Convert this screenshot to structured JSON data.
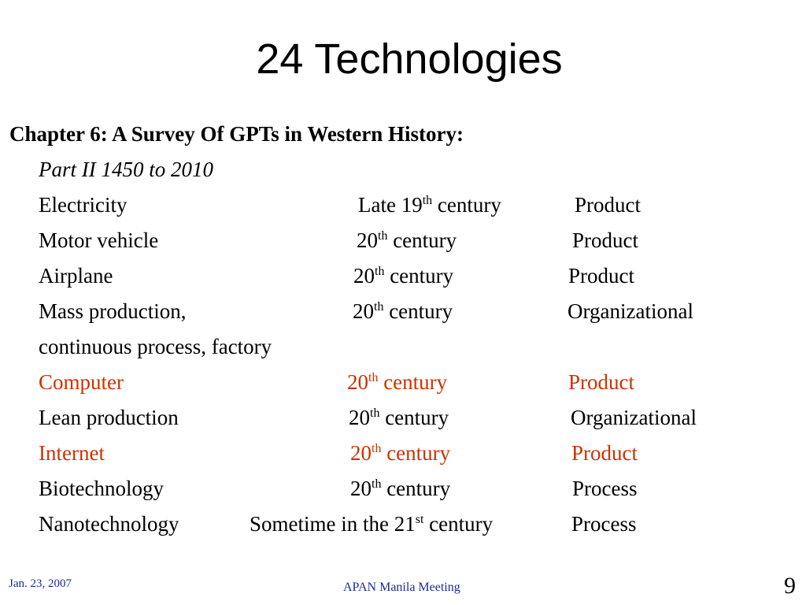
{
  "title": "24 Technologies",
  "heading": "Chapter 6: A Survey Of GPTs in Western History:",
  "subheading": "Part II 1450 to 2010",
  "rows": [
    {
      "name": "Electricity",
      "era_pre": "Late 19",
      "era_sup": "th",
      "era_post": " century",
      "type": "Product"
    },
    {
      "name": "Motor vehicle",
      "era_pre": "20",
      "era_sup": "th",
      "era_post": " century",
      "type": "Product"
    },
    {
      "name": "Airplane",
      "era_pre": "20",
      "era_sup": "th",
      "era_post": " century",
      "type": "Product"
    },
    {
      "name": "Mass production,",
      "era_pre": "20",
      "era_sup": "th",
      "era_post": " century",
      "type": "Organizational"
    },
    {
      "name": "continuous process, factory",
      "era_pre": "",
      "era_sup": "",
      "era_post": "",
      "type": ""
    },
    {
      "name": "Computer",
      "era_pre": "20",
      "era_sup": "th",
      "era_post": " century",
      "type": "Product"
    },
    {
      "name": "Lean production",
      "era_pre": "20",
      "era_sup": "th",
      "era_post": " century",
      "type": "Organizational"
    },
    {
      "name": "Internet",
      "era_pre": "20",
      "era_sup": "th",
      "era_post": " century",
      "type": "Product"
    },
    {
      "name": "Biotechnology",
      "era_pre": "20",
      "era_sup": "th",
      "era_post": " century",
      "type": "Process"
    },
    {
      "name": "Nanotechnology",
      "era_pre": "Sometime in the 21",
      "era_sup": "st",
      "era_post": " century",
      "type": "Process"
    }
  ],
  "colors": {
    "highlight": "#cc3300",
    "footer": "#1a2a9a"
  },
  "footer": {
    "date": "Jan. 23, 2007",
    "center": "APAN Manila Meeting",
    "page": "9"
  }
}
